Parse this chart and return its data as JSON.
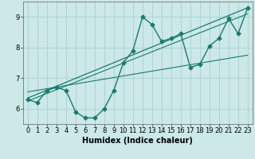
{
  "xlabel": "Humidex (Indice chaleur)",
  "bg_color": "#cce8e8",
  "grid_color": "#aacfcf",
  "line_color": "#1a7a6e",
  "x_data": [
    0,
    1,
    2,
    3,
    4,
    5,
    6,
    7,
    8,
    9,
    10,
    11,
    12,
    13,
    14,
    15,
    16,
    17,
    18,
    19,
    20,
    21,
    22,
    23
  ],
  "y_data": [
    6.3,
    6.2,
    6.6,
    6.7,
    6.6,
    5.9,
    5.7,
    5.7,
    6.0,
    6.6,
    7.5,
    7.9,
    9.0,
    8.75,
    8.2,
    8.3,
    8.45,
    7.35,
    7.45,
    8.05,
    8.3,
    8.95,
    8.45,
    9.3
  ],
  "xlim": [
    -0.5,
    23.5
  ],
  "ylim": [
    5.5,
    9.5
  ],
  "yticks": [
    6,
    7,
    8,
    9
  ],
  "xticks": [
    0,
    1,
    2,
    3,
    4,
    5,
    6,
    7,
    8,
    9,
    10,
    11,
    12,
    13,
    14,
    15,
    16,
    17,
    18,
    19,
    20,
    21,
    22,
    23
  ],
  "reg_line1": [
    [
      0,
      23
    ],
    [
      6.35,
      9.3
    ]
  ],
  "reg_line2": [
    [
      0,
      23
    ],
    [
      6.25,
      9.1
    ]
  ],
  "reg_line3": [
    [
      0,
      23
    ],
    [
      6.55,
      7.75
    ]
  ],
  "marker_size": 2.5,
  "line_width": 1.0,
  "font_size_label": 7,
  "font_size_tick": 6
}
